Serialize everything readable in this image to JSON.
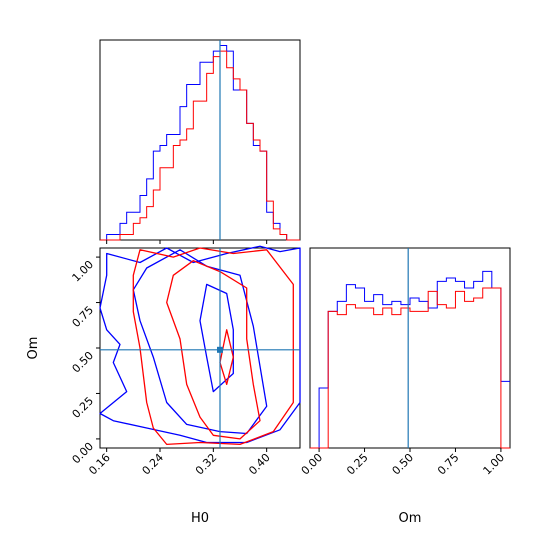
{
  "chart_data": {
    "type": "corner",
    "colors": {
      "series_a": "#0000ff",
      "series_b": "#ff0000",
      "truth": "#1f77b4",
      "axes": "#000000"
    },
    "parameters": [
      "H0",
      "Om"
    ],
    "truth": {
      "H0": 0.33,
      "Om": 0.49
    },
    "h0_range": [
      0.15,
      0.45
    ],
    "om_range": [
      -0.05,
      1.05
    ],
    "h0_ticks": [
      "0.16",
      "0.24",
      "0.32",
      "0.40"
    ],
    "om_ticks": [
      "0.00",
      "0.25",
      "0.50",
      "0.75",
      "1.00"
    ],
    "xlabel_h0": "H0",
    "xlabel_om": "Om",
    "ylabel_om": "Om",
    "h0_hist": {
      "bin_edges": [
        0.15,
        0.16,
        0.17,
        0.18,
        0.19,
        0.2,
        0.21,
        0.22,
        0.23,
        0.24,
        0.25,
        0.26,
        0.27,
        0.28,
        0.29,
        0.3,
        0.31,
        0.32,
        0.33,
        0.34,
        0.35,
        0.36,
        0.37,
        0.38,
        0.39,
        0.4,
        0.41,
        0.42,
        0.43,
        0.44,
        0.45
      ],
      "series": [
        {
          "color": "series_a",
          "counts": [
            0,
            1,
            1,
            3,
            5,
            5,
            8,
            11,
            16,
            17,
            19,
            19,
            24,
            28,
            28,
            32,
            32,
            34,
            35,
            34,
            27,
            27,
            21,
            17,
            16,
            5,
            3,
            1,
            0,
            0
          ]
        },
        {
          "color": "series_b",
          "counts": [
            0,
            0,
            0,
            1,
            1,
            3,
            4,
            6,
            9,
            13,
            13,
            17,
            18,
            20,
            25,
            25,
            30,
            33,
            34,
            31,
            29,
            27,
            21,
            18,
            16,
            7,
            2,
            1,
            0,
            0
          ]
        }
      ],
      "ymax": 36
    },
    "om_hist": {
      "bin_edges": [
        -0.05,
        0.0,
        0.05,
        0.1,
        0.15,
        0.2,
        0.25,
        0.3,
        0.35,
        0.4,
        0.45,
        0.5,
        0.55,
        0.6,
        0.65,
        0.7,
        0.75,
        0.8,
        0.85,
        0.9,
        0.95,
        1.0,
        1.05
      ],
      "series": [
        {
          "color": "series_a",
          "counts": [
            0,
            18,
            41,
            44,
            49,
            48,
            44,
            46,
            43,
            44,
            43,
            45,
            44,
            42,
            50,
            51,
            50,
            48,
            50,
            53,
            48,
            20
          ]
        },
        {
          "color": "series_b",
          "counts": [
            0,
            0,
            41,
            40,
            43,
            42,
            42,
            40,
            42,
            40,
            42,
            41,
            41,
            47,
            43,
            42,
            47,
            44,
            45,
            48,
            48,
            0
          ]
        }
      ],
      "ymax": 60
    },
    "contours": [
      {
        "color": "series_a",
        "points": [
          [
            0.16,
            1.02
          ],
          [
            0.21,
            0.97
          ],
          [
            0.25,
            1.05
          ],
          [
            0.29,
            0.97
          ],
          [
            0.34,
            1.02
          ],
          [
            0.39,
            1.06
          ],
          [
            0.42,
            1.03
          ],
          [
            0.45,
            1.05
          ],
          [
            0.45,
            0.2
          ],
          [
            0.42,
            0.05
          ],
          [
            0.37,
            -0.02
          ],
          [
            0.31,
            -0.02
          ],
          [
            0.27,
            0.02
          ],
          [
            0.22,
            0.06
          ],
          [
            0.17,
            0.1
          ],
          [
            0.15,
            0.14
          ],
          [
            0.19,
            0.26
          ],
          [
            0.17,
            0.42
          ],
          [
            0.18,
            0.52
          ],
          [
            0.16,
            0.6
          ],
          [
            0.15,
            0.72
          ],
          [
            0.16,
            0.9
          ]
        ]
      },
      {
        "color": "series_a",
        "points": [
          [
            0.22,
            0.94
          ],
          [
            0.27,
            1.04
          ],
          [
            0.31,
            0.95
          ],
          [
            0.36,
            0.9
          ],
          [
            0.38,
            0.62
          ],
          [
            0.39,
            0.4
          ],
          [
            0.4,
            0.18
          ],
          [
            0.37,
            0.03
          ],
          [
            0.33,
            0.04
          ],
          [
            0.28,
            0.08
          ],
          [
            0.25,
            0.2
          ],
          [
            0.23,
            0.45
          ],
          [
            0.21,
            0.65
          ],
          [
            0.2,
            0.82
          ]
        ]
      },
      {
        "color": "series_a",
        "points": [
          [
            0.31,
            0.85
          ],
          [
            0.34,
            0.8
          ],
          [
            0.35,
            0.6
          ],
          [
            0.35,
            0.36
          ],
          [
            0.32,
            0.26
          ],
          [
            0.31,
            0.45
          ],
          [
            0.3,
            0.65
          ]
        ]
      },
      {
        "color": "series_b",
        "points": [
          [
            0.21,
            1.04
          ],
          [
            0.26,
            1.0
          ],
          [
            0.3,
            1.05
          ],
          [
            0.35,
            1.02
          ],
          [
            0.4,
            1.04
          ],
          [
            0.44,
            0.85
          ],
          [
            0.44,
            0.2
          ],
          [
            0.41,
            0.04
          ],
          [
            0.36,
            -0.03
          ],
          [
            0.3,
            -0.02
          ],
          [
            0.25,
            -0.03
          ],
          [
            0.23,
            0.06
          ],
          [
            0.22,
            0.2
          ],
          [
            0.21,
            0.5
          ],
          [
            0.2,
            0.7
          ],
          [
            0.2,
            0.9
          ]
        ]
      },
      {
        "color": "series_b",
        "points": [
          [
            0.26,
            0.9
          ],
          [
            0.29,
            0.98
          ],
          [
            0.33,
            0.92
          ],
          [
            0.37,
            0.83
          ],
          [
            0.37,
            0.55
          ],
          [
            0.38,
            0.3
          ],
          [
            0.39,
            0.1
          ],
          [
            0.36,
            0.0
          ],
          [
            0.32,
            0.02
          ],
          [
            0.3,
            0.12
          ],
          [
            0.28,
            0.3
          ],
          [
            0.27,
            0.55
          ],
          [
            0.25,
            0.75
          ]
        ]
      },
      {
        "color": "series_b",
        "points": [
          [
            0.34,
            0.6
          ],
          [
            0.35,
            0.45
          ],
          [
            0.34,
            0.3
          ],
          [
            0.33,
            0.42
          ]
        ]
      }
    ]
  }
}
